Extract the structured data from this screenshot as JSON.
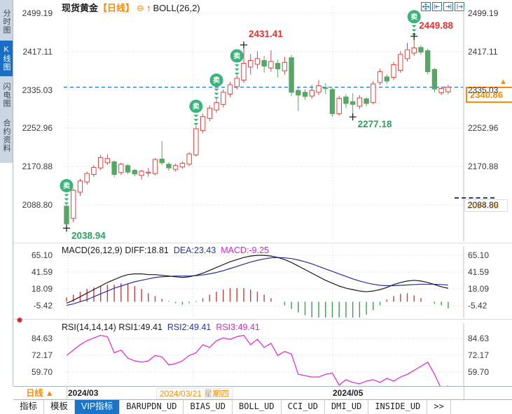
{
  "header": {
    "symbol": "现货黄金",
    "period_tag": "【日线】",
    "collapse_glyph": "⊖",
    "arrow_glyph": "↑",
    "indicator": "BOLL(26,2)",
    "window_icons": [
      "pan-icon",
      "scroll-left-icon",
      "scroll-right-icon",
      "page-right-icon"
    ]
  },
  "sidebar": {
    "items": [
      {
        "label": "分时图",
        "selected": false
      },
      {
        "label": "K线图",
        "selected": true
      },
      {
        "label": "闪电图",
        "selected": false
      },
      {
        "label": "合约资料",
        "selected": false
      }
    ]
  },
  "right_axis": {
    "current_price": "2340.86",
    "alert_price": "2094.88"
  },
  "macd_header": {
    "title": "MACD(26,12,9)",
    "diff_label": "DIFF:18.81",
    "dea_label": "DEA:23.43",
    "macd_label": "MACD:-9.25"
  },
  "rsi_header": {
    "title": "RSI(14,14,14)",
    "rsi1_label": "RSI1:49.41",
    "rsi2_label": "RSI2:49.41",
    "rsi3_label": "RSI3:49.41"
  },
  "time_axis": {
    "period": "日线",
    "period_arrow": "▲",
    "labels": [
      {
        "text": "2024/03",
        "highlight": false
      },
      {
        "text": "2024/03/21 星期四",
        "highlight": true
      },
      {
        "text": "2024/05",
        "highlight": false
      }
    ]
  },
  "tabs": {
    "items": [
      "指标",
      "模板",
      "VIP指标",
      "BARUPDN_UD",
      "BIAS_UD",
      "BOLL_UD",
      "CCI_UD",
      "DMI_UD",
      "INSIDE_UD",
      ">>"
    ],
    "selected_index": 2
  },
  "colors": {
    "up": "#e0433e",
    "down": "#57a666",
    "sell_badge": "#3cb37a",
    "label_red": "#e23333",
    "label_green": "#2f9e63",
    "orange": "#ff8a00",
    "current_line": "#2f7fe0",
    "macd_diff": "#1a1a1a",
    "macd_dea": "#232fa0",
    "hist_up": "#cc3b3b",
    "hist_down": "#3d9c50",
    "rsi3": "#e620d6",
    "grid": "#cdd0d6",
    "selected_tab": "#1a75c8"
  },
  "chart_data": [
    {
      "type": "candlestick",
      "title": "现货黄金 日线",
      "y_ticks": [
        2499.19,
        2417.11,
        2335.03,
        2252.96,
        2170.88,
        2088.8
      ],
      "x_labels": [
        "2024/03",
        "2024/03/21 星期四",
        "2024/05"
      ],
      "current_price": 2340.86,
      "alert_price": 2094.88,
      "ohlc": [
        [
          2086,
          2088,
          2038.94,
          2048
        ],
        [
          2060,
          2124,
          2052,
          2120
        ],
        [
          2116,
          2145,
          2108,
          2140
        ],
        [
          2138,
          2160,
          2132,
          2156
        ],
        [
          2154,
          2174,
          2149,
          2169
        ],
        [
          2168,
          2196,
          2163,
          2190
        ],
        [
          2179,
          2197,
          2174,
          2188
        ],
        [
          2181,
          2184,
          2148,
          2154
        ],
        [
          2158,
          2179,
          2153,
          2176
        ],
        [
          2173,
          2176,
          2155,
          2159
        ],
        [
          2163,
          2166,
          2150,
          2155
        ],
        [
          2152,
          2164,
          2143,
          2161
        ],
        [
          2157,
          2168,
          2149,
          2159
        ],
        [
          2156,
          2189,
          2152,
          2186
        ],
        [
          2187,
          2226,
          2174,
          2179
        ],
        [
          2176,
          2180,
          2162,
          2168
        ],
        [
          2165,
          2177,
          2160,
          2173
        ],
        [
          2170,
          2182,
          2166,
          2178
        ],
        [
          2176,
          2202,
          2172,
          2198
        ],
        [
          2196,
          2258,
          2192,
          2252
        ],
        [
          2248,
          2284,
          2242,
          2278
        ],
        [
          2274,
          2302,
          2268,
          2296
        ],
        [
          2292,
          2314,
          2286,
          2308
        ],
        [
          2304,
          2336,
          2298,
          2330
        ],
        [
          2326,
          2352,
          2320,
          2346
        ],
        [
          2342,
          2366,
          2336,
          2360
        ],
        [
          2356,
          2431.41,
          2350,
          2392
        ],
        [
          2384,
          2412,
          2368,
          2398
        ],
        [
          2390,
          2418,
          2380,
          2402
        ],
        [
          2398,
          2408,
          2372,
          2386
        ],
        [
          2382,
          2420,
          2374,
          2396
        ],
        [
          2392,
          2400,
          2362,
          2380
        ],
        [
          2376,
          2406,
          2368,
          2394
        ],
        [
          2404,
          2410,
          2322,
          2330
        ],
        [
          2334,
          2340,
          2290,
          2324
        ],
        [
          2330,
          2336,
          2314,
          2321
        ],
        [
          2322,
          2346,
          2316,
          2334
        ],
        [
          2330,
          2356,
          2324,
          2344
        ],
        [
          2340,
          2350,
          2326,
          2338
        ],
        [
          2336,
          2340,
          2278,
          2284
        ],
        [
          2284,
          2322,
          2280,
          2317
        ],
        [
          2320,
          2326,
          2296,
          2306
        ],
        [
          2310,
          2328,
          2277.18,
          2304
        ],
        [
          2300,
          2324,
          2294,
          2318
        ],
        [
          2316,
          2320,
          2300,
          2306
        ],
        [
          2308,
          2354,
          2304,
          2348
        ],
        [
          2351,
          2380,
          2346,
          2374
        ],
        [
          2363,
          2368,
          2348,
          2354
        ],
        [
          2362,
          2395,
          2356,
          2389
        ],
        [
          2377,
          2418,
          2372,
          2411
        ],
        [
          2402,
          2436,
          2396,
          2421
        ],
        [
          2414,
          2449.88,
          2408,
          2425
        ],
        [
          2426,
          2430,
          2410,
          2416
        ],
        [
          2419,
          2424,
          2368,
          2374
        ],
        [
          2379,
          2382,
          2330,
          2337
        ],
        [
          2329,
          2342,
          2324,
          2338
        ],
        [
          2331,
          2346,
          2326,
          2340.86
        ]
      ],
      "sell_signal_indices": [
        0,
        19,
        22,
        25,
        51
      ],
      "sell_signal_glyph": "卖",
      "extreme_markers": [
        {
          "index": 0,
          "type": "low",
          "price": 2038.94
        },
        {
          "index": 26,
          "type": "high",
          "price": 2431.41
        },
        {
          "index": 42,
          "type": "low",
          "price": 2277.18
        },
        {
          "index": 51,
          "type": "high",
          "price": 2449.88
        }
      ],
      "price_labels": [
        {
          "index": 0,
          "text": "2038.94",
          "color": "green",
          "pos": "below"
        },
        {
          "index": 26,
          "text": "2431.41",
          "color": "red",
          "pos": "above"
        },
        {
          "index": 42,
          "text": "2277.18",
          "color": "green",
          "pos": "below"
        },
        {
          "index": 51,
          "text": "2449.88",
          "color": "red",
          "pos": "above"
        }
      ]
    },
    {
      "type": "macd",
      "name": "MACD",
      "params": "(26,12,9)",
      "y_ticks": [
        65.1,
        41.59,
        18.09,
        -5.42
      ],
      "current": {
        "diff": 18.81,
        "dea": 23.43,
        "macd": -9.25
      },
      "diff": [
        -2,
        2,
        7,
        12,
        17,
        22,
        27,
        31,
        35,
        38,
        39,
        39,
        38,
        38,
        37,
        36,
        35,
        34,
        35,
        37,
        40,
        44,
        48,
        52,
        56,
        59,
        62,
        64,
        65,
        65,
        64,
        62,
        59,
        55,
        50,
        45,
        40,
        35,
        30,
        26,
        22,
        19,
        17,
        15,
        14,
        15,
        17,
        20,
        24,
        27,
        29,
        30,
        29,
        27,
        24,
        21,
        18.81
      ],
      "dea": [
        -5,
        -3,
        0,
        3,
        7,
        11,
        15,
        19,
        22,
        25,
        28,
        30,
        32,
        34,
        35,
        35.5,
        36,
        36,
        36,
        36.5,
        37.5,
        39,
        41,
        43.5,
        46.5,
        49.5,
        52.5,
        55.5,
        58,
        60,
        61.5,
        62,
        61.5,
        60.5,
        58.5,
        56,
        53,
        49.5,
        46,
        42.5,
        39,
        35.5,
        32,
        29,
        26.5,
        24.5,
        23,
        22.5,
        22.5,
        23,
        23.5,
        24,
        24.5,
        24.5,
        24.5,
        24,
        23.43
      ],
      "hist": [
        6,
        10,
        14,
        18,
        20,
        22,
        24,
        24,
        26,
        26,
        22,
        18,
        12,
        8,
        4,
        1,
        -2,
        -4,
        -2,
        1,
        5,
        10,
        14,
        17,
        19,
        19,
        19,
        17,
        14,
        10,
        5,
        0,
        -5,
        -10,
        -15,
        -19,
        -22,
        -24,
        -25,
        -26,
        -26,
        -25,
        -24,
        -22,
        -18,
        -12,
        -5,
        3,
        8,
        11,
        12,
        9,
        5,
        0,
        -3,
        -5,
        -9.25
      ]
    },
    {
      "type": "rsi",
      "name": "RSI",
      "params": "(14,14,14)",
      "y_ticks": [
        84.63,
        72.17,
        59.7
      ],
      "current": {
        "rsi1": 49.41,
        "rsi2": 49.41,
        "rsi3": 49.41
      },
      "rsi3": [
        72,
        76,
        80,
        83,
        85,
        87,
        86,
        74,
        76,
        70,
        68,
        67,
        68,
        72,
        71,
        65,
        66,
        68,
        72,
        74,
        80,
        78,
        83,
        85,
        84,
        86,
        87,
        80,
        84,
        78,
        81,
        72,
        75,
        73,
        58,
        57,
        56,
        56,
        58,
        59,
        50,
        54,
        52,
        51,
        53,
        54,
        52,
        55,
        53,
        56,
        58,
        61,
        64,
        67,
        58,
        47,
        49.41
      ]
    }
  ]
}
